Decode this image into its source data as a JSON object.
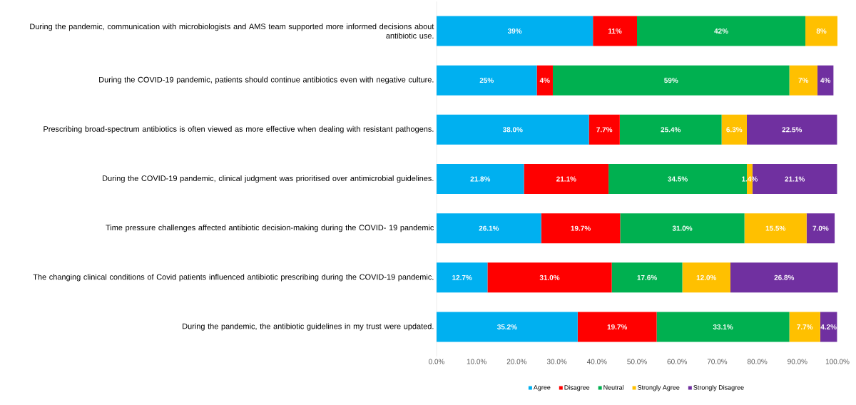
{
  "chart_data": {
    "type": "bar",
    "orientation": "horizontal",
    "stacked": true,
    "categories": [
      "During the pandemic, communication with microbiologists and AMS team supported more informed decisions about antibiotic use.",
      "During the COVID-19 pandemic, patients should continue antibiotics even with negative culture.",
      "Prescribing broad-spectrum antibiotics is often viewed as more effective when dealing with resistant pathogens.",
      "During the COVID-19 pandemic, clinical judgment was prioritised over antimicrobial guidelines.",
      "Time pressure challenges affected antibiotic decision-making during the COVID- 19 pandemic",
      "The changing clinical conditions of Covid patients influenced antibiotic prescribing during the COVID-19 pandemic.",
      "During the pandemic, the antibiotic guidelines in my trust were updated."
    ],
    "series": [
      {
        "name": "Agree",
        "color": "#00b0f0",
        "values": [
          39,
          25,
          38.0,
          21.8,
          26.1,
          12.7,
          35.2
        ],
        "value_labels": [
          "39%",
          "25%",
          "38.0%",
          "21.8%",
          "26.1%",
          "12.7%",
          "35.2%"
        ]
      },
      {
        "name": "Disagree",
        "color": "#ff0000",
        "values": [
          11,
          4,
          7.7,
          21.1,
          19.7,
          31.0,
          19.7
        ],
        "value_labels": [
          "11%",
          "4%",
          "7.7%",
          "21.1%",
          "19.7%",
          "31.0%",
          "19.7%"
        ]
      },
      {
        "name": "Neutral",
        "color": "#00b050",
        "values": [
          42,
          59,
          25.4,
          34.5,
          31.0,
          17.6,
          33.1
        ],
        "value_labels": [
          "42%",
          "59%",
          "25.4%",
          "34.5%",
          "31.0%",
          "17.6%",
          "33.1%"
        ]
      },
      {
        "name": "Strongly Agree",
        "color": "#ffc000",
        "values": [
          8,
          7,
          6.3,
          1.4,
          15.5,
          12.0,
          7.7
        ],
        "value_labels": [
          "8%",
          "7%",
          "6.3%",
          "1.4%",
          "15.5%",
          "12.0%",
          "7.7%"
        ]
      },
      {
        "name": "Strongly Disagree",
        "color": "#7030a0",
        "values": [
          null,
          4,
          22.5,
          21.1,
          7.0,
          26.8,
          4.2
        ],
        "value_labels": [
          null,
          "4%",
          "22.5%",
          "21.1%",
          "7.0%",
          "26.8%",
          "4.2%"
        ]
      }
    ],
    "xlim": [
      0,
      100
    ],
    "xticks": [
      {
        "value": 0,
        "label": "0.0%"
      },
      {
        "value": 10,
        "label": "10.0%"
      },
      {
        "value": 20,
        "label": "20.0%"
      },
      {
        "value": 30,
        "label": "30.0%"
      },
      {
        "value": 40,
        "label": "40.0%"
      },
      {
        "value": 50,
        "label": "50.0%"
      },
      {
        "value": 60,
        "label": "60.0%"
      },
      {
        "value": 70,
        "label": "70.0%"
      },
      {
        "value": 80,
        "label": "80.0%"
      },
      {
        "value": 90,
        "label": "90.0%"
      },
      {
        "value": 100,
        "label": "100.0%"
      }
    ],
    "legend": "bottom",
    "grid": false
  }
}
